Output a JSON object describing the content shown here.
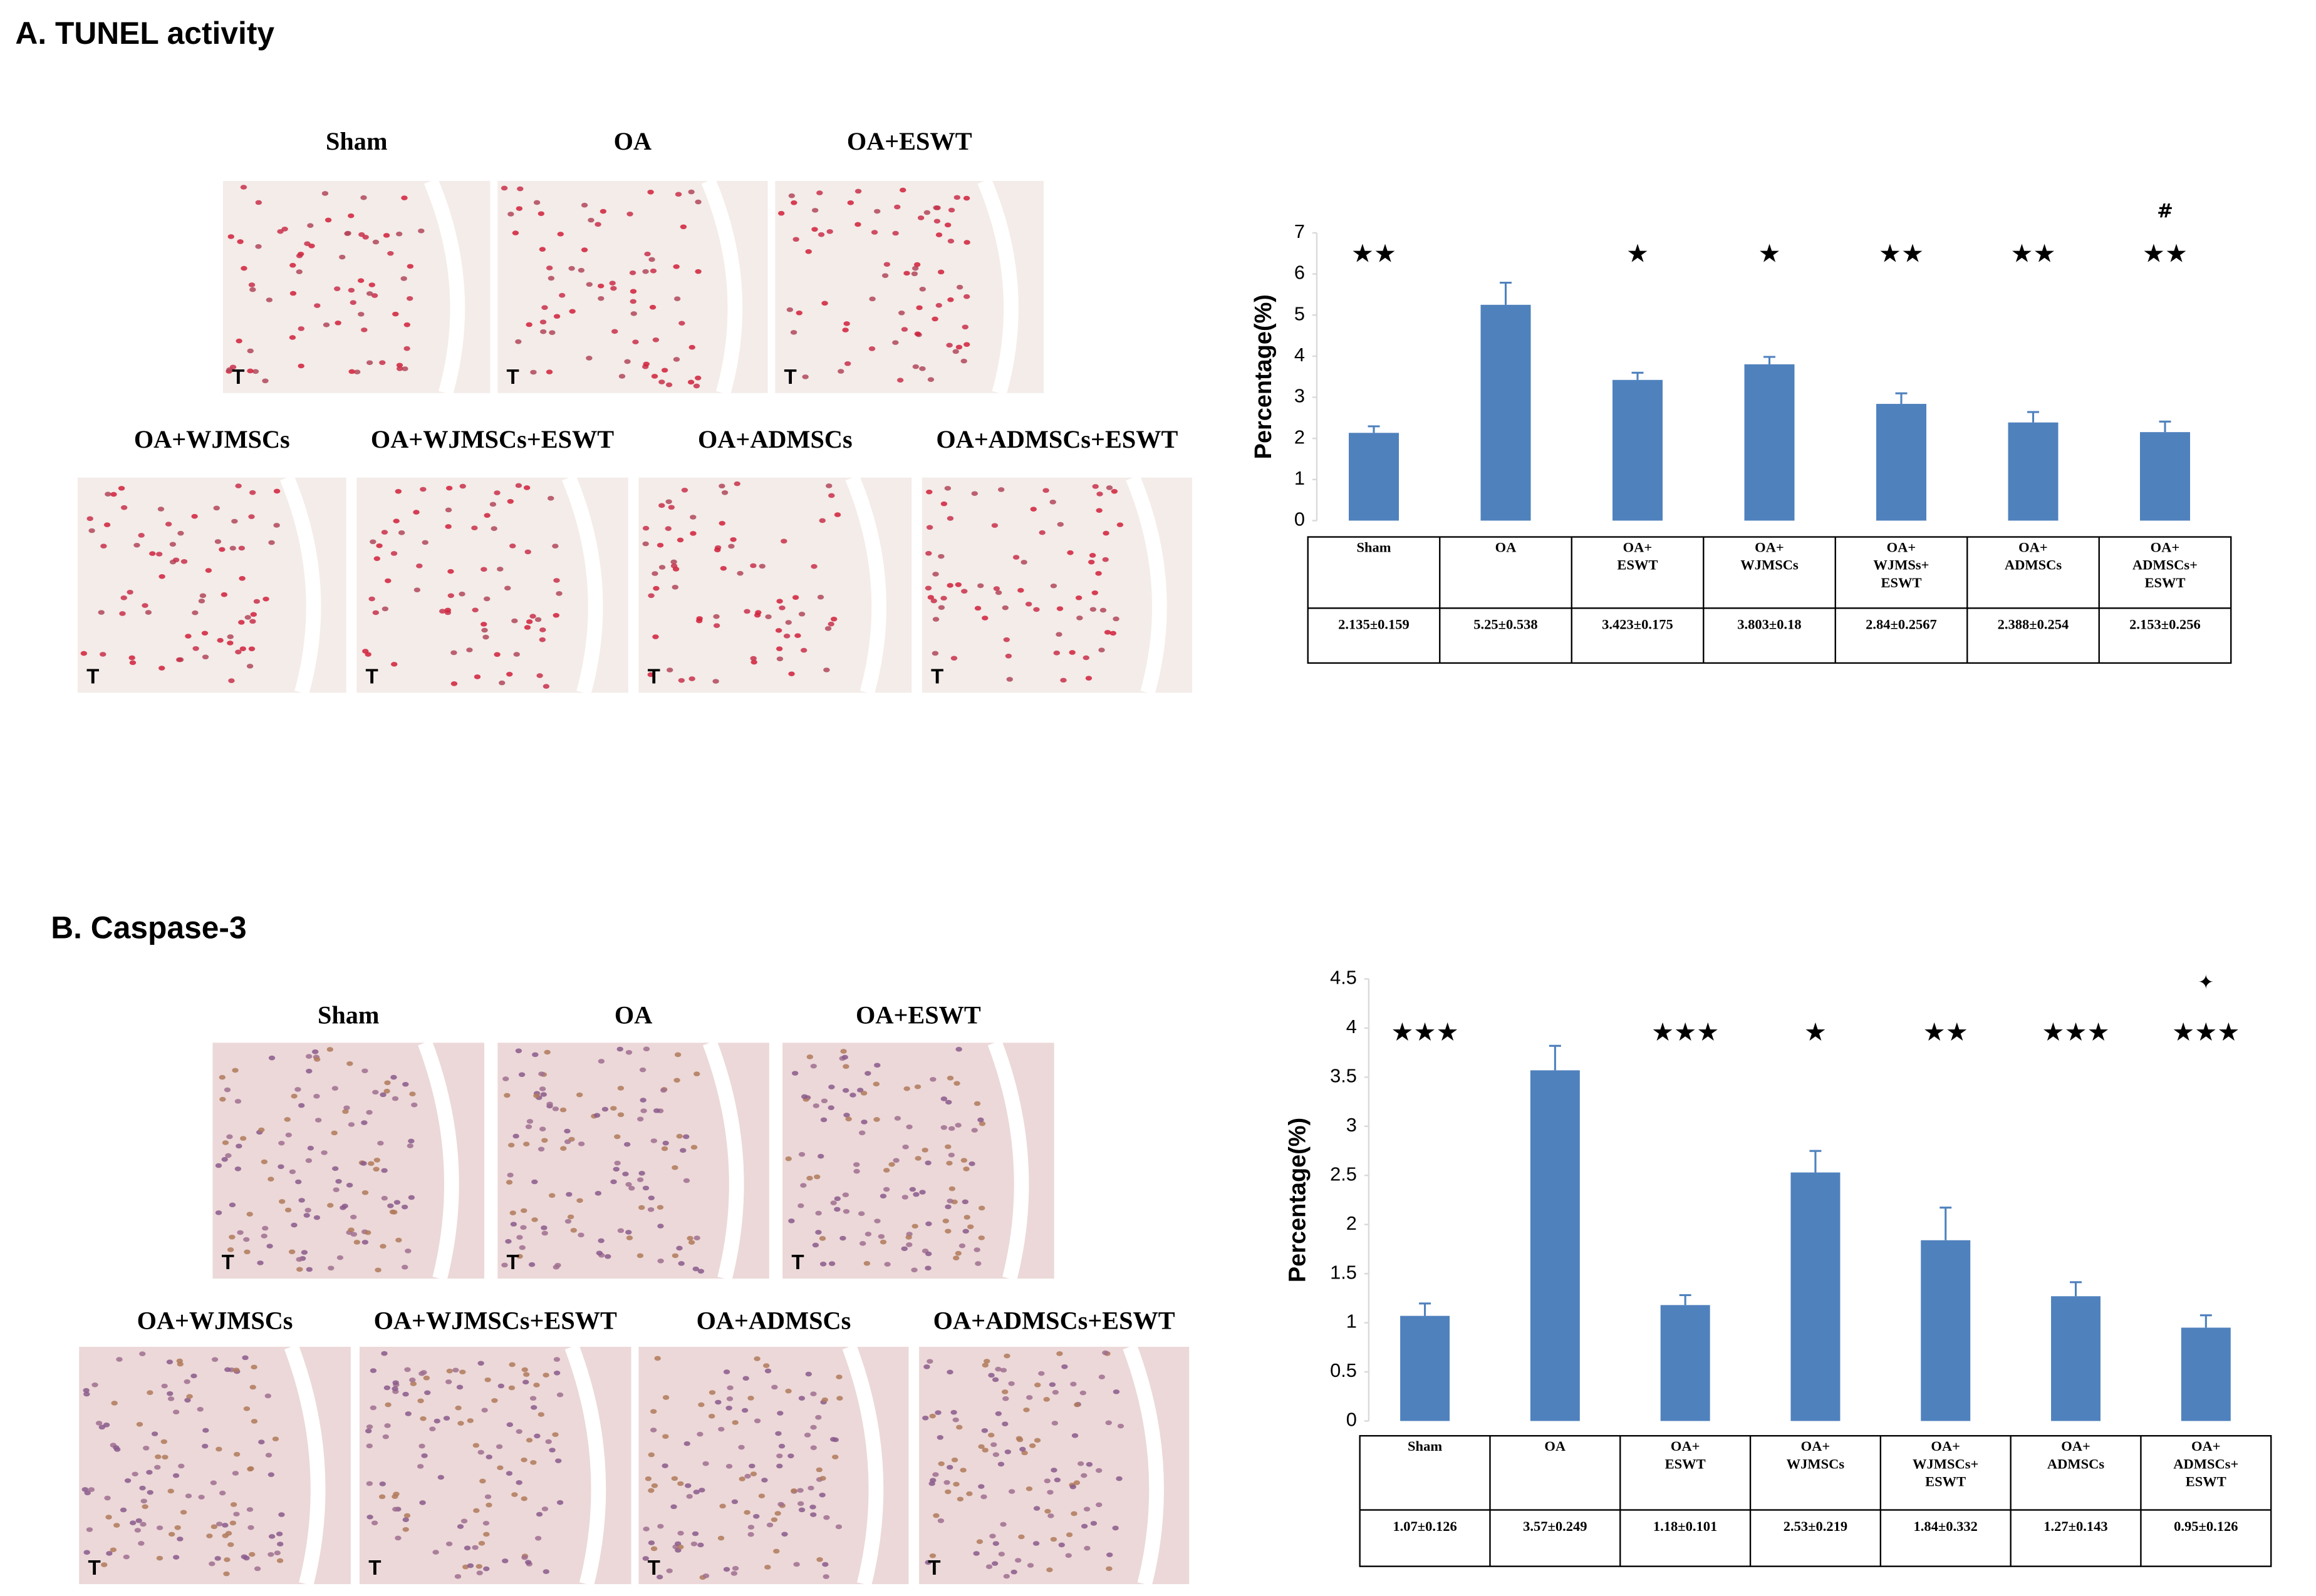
{
  "panels": [
    {
      "title": "A. TUNEL activity",
      "images": [
        "Sham",
        "OA",
        "OA+ESWT",
        "OA+WJMSCs",
        "OA+WJMSCs+ESWT",
        "OA+ADMSCs",
        "OA+ADMSCs+ESWT"
      ],
      "image_marker": "T"
    },
    {
      "title": "B. Caspase-3",
      "images": [
        "Sham",
        "OA",
        "OA+ESWT",
        "OA+WJMSCs",
        "OA+WJMSCs+ESWT",
        "OA+ADMSCs",
        "OA+ADMSCs+ESWT"
      ],
      "image_marker": "T"
    }
  ],
  "chart_data": [
    {
      "type": "bar",
      "y_label": "Percentage(%)",
      "color": "#4f81bd",
      "categories": [
        "Sham",
        "OA",
        "OA+\nESWT",
        "OA+\nWJMSCs",
        "OA+\nWJMSs+\nESWT",
        "OA+\nADMSCs",
        "OA+\nADMSCs+\nESWT"
      ],
      "values": [
        2.135,
        5.25,
        3.423,
        3.803,
        2.84,
        2.388,
        2.153
      ],
      "errors": [
        0.159,
        0.538,
        0.175,
        0.18,
        0.2567,
        0.254,
        0.256
      ],
      "value_labels": [
        "2.135±0.159",
        "5.25±0.538",
        "3.423±0.175",
        "3.803±0.18",
        "2.84±0.2567",
        "2.388±0.254",
        "2.153±0.256"
      ],
      "significance": [
        "★★",
        null,
        "★",
        "★",
        "★★",
        "★★",
        "★★"
      ],
      "extra_marks": [
        null,
        null,
        null,
        null,
        null,
        null,
        "#"
      ],
      "ylim": [
        0,
        7
      ],
      "yticks": [
        0,
        1,
        2,
        3,
        4,
        5,
        6,
        7
      ]
    },
    {
      "type": "bar",
      "y_label": "Percentage(%)",
      "color": "#4f81bd",
      "categories": [
        "Sham",
        "OA",
        "OA+\nESWT",
        "OA+\nWJMSCs",
        "OA+\nWJMSCs+\nESWT",
        "OA+\nADMSCs",
        "OA+\nADMSCs+\nESWT"
      ],
      "values": [
        1.07,
        3.57,
        1.18,
        2.53,
        1.84,
        1.27,
        0.95
      ],
      "errors": [
        0.126,
        0.249,
        0.101,
        0.219,
        0.332,
        0.143,
        0.126
      ],
      "value_labels": [
        "1.07±0.126",
        "3.57±0.249",
        "1.18±0.101",
        "2.53±0.219",
        "1.84±0.332",
        "1.27±0.143",
        "0.95±0.126"
      ],
      "significance": [
        "★★★",
        null,
        "★★★",
        "★",
        "★★",
        "★★★",
        "★★★"
      ],
      "extra_marks": [
        null,
        null,
        null,
        null,
        null,
        null,
        "✦"
      ],
      "ylim": [
        0,
        4.5
      ],
      "yticks": [
        0,
        0.5,
        1,
        1.5,
        2,
        2.5,
        3,
        3.5,
        4,
        4.5
      ]
    }
  ]
}
